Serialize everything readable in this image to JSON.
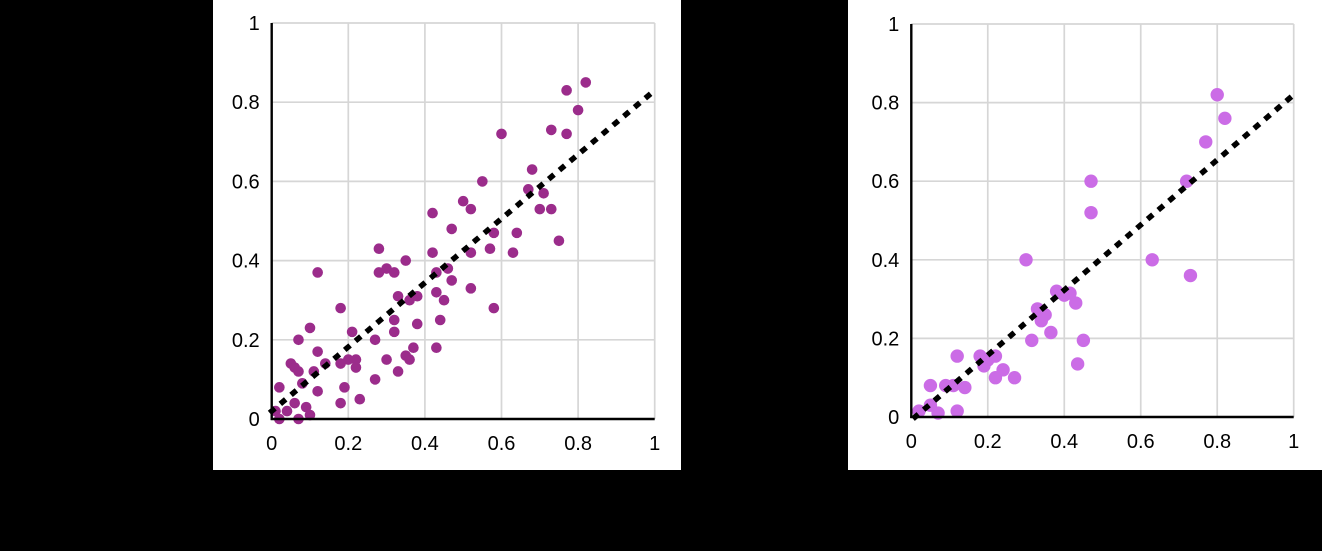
{
  "page": {
    "background_color": "#000000",
    "panel_color": "#ffffff"
  },
  "chart_data": [
    {
      "id": "left-scatter",
      "type": "scatter",
      "title": "",
      "xlabel": "",
      "ylabel": "",
      "xlim": [
        0,
        1
      ],
      "ylim": [
        0,
        1
      ],
      "grid": true,
      "grid_color": "#d6d6d6",
      "axis_color": "#000000",
      "legend": "none",
      "x_tick_values": [
        0,
        0.2,
        0.4,
        0.6,
        0.8,
        1
      ],
      "y_tick_values": [
        0,
        0.2,
        0.4,
        0.6,
        0.8,
        1
      ],
      "x_tick_labels": [
        "0",
        "0.2",
        "0.4",
        "0.6",
        "0.8",
        "1"
      ],
      "y_tick_labels": [
        "0",
        "0.2",
        "0.4",
        "0.6",
        "0.8",
        "1"
      ],
      "series": [
        {
          "name": "scatter-points",
          "marker": "circle",
          "color": "#9B2C8B",
          "marker_radius": 5.3,
          "points": [
            [
              0.01,
              0.02
            ],
            [
              0.02,
              0.0
            ],
            [
              0.02,
              0.08
            ],
            [
              0.04,
              0.02
            ],
            [
              0.05,
              0.14
            ],
            [
              0.06,
              0.04
            ],
            [
              0.06,
              0.13
            ],
            [
              0.07,
              0.0
            ],
            [
              0.07,
              0.12
            ],
            [
              0.07,
              0.2
            ],
            [
              0.08,
              0.09
            ],
            [
              0.09,
              0.03
            ],
            [
              0.1,
              0.01
            ],
            [
              0.1,
              0.23
            ],
            [
              0.11,
              0.12
            ],
            [
              0.12,
              0.07
            ],
            [
              0.12,
              0.17
            ],
            [
              0.12,
              0.37
            ],
            [
              0.14,
              0.14
            ],
            [
              0.18,
              0.04
            ],
            [
              0.18,
              0.14
            ],
            [
              0.18,
              0.28
            ],
            [
              0.19,
              0.08
            ],
            [
              0.2,
              0.15
            ],
            [
              0.21,
              0.22
            ],
            [
              0.22,
              0.13
            ],
            [
              0.22,
              0.15
            ],
            [
              0.23,
              0.05
            ],
            [
              0.27,
              0.1
            ],
            [
              0.27,
              0.2
            ],
            [
              0.28,
              0.37
            ],
            [
              0.28,
              0.43
            ],
            [
              0.3,
              0.15
            ],
            [
              0.3,
              0.38
            ],
            [
              0.32,
              0.22
            ],
            [
              0.32,
              0.25
            ],
            [
              0.32,
              0.37
            ],
            [
              0.33,
              0.12
            ],
            [
              0.33,
              0.31
            ],
            [
              0.35,
              0.16
            ],
            [
              0.35,
              0.4
            ],
            [
              0.36,
              0.15
            ],
            [
              0.36,
              0.3
            ],
            [
              0.37,
              0.18
            ],
            [
              0.38,
              0.24
            ],
            [
              0.38,
              0.31
            ],
            [
              0.42,
              0.42
            ],
            [
              0.42,
              0.52
            ],
            [
              0.43,
              0.18
            ],
            [
              0.43,
              0.32
            ],
            [
              0.43,
              0.37
            ],
            [
              0.44,
              0.25
            ],
            [
              0.45,
              0.3
            ],
            [
              0.46,
              0.38
            ],
            [
              0.47,
              0.35
            ],
            [
              0.47,
              0.48
            ],
            [
              0.5,
              0.55
            ],
            [
              0.52,
              0.33
            ],
            [
              0.52,
              0.42
            ],
            [
              0.52,
              0.53
            ],
            [
              0.55,
              0.6
            ],
            [
              0.57,
              0.43
            ],
            [
              0.58,
              0.28
            ],
            [
              0.58,
              0.47
            ],
            [
              0.6,
              0.72
            ],
            [
              0.63,
              0.42
            ],
            [
              0.64,
              0.47
            ],
            [
              0.67,
              0.58
            ],
            [
              0.68,
              0.63
            ],
            [
              0.7,
              0.53
            ],
            [
              0.71,
              0.57
            ],
            [
              0.73,
              0.53
            ],
            [
              0.73,
              0.73
            ],
            [
              0.75,
              0.45
            ],
            [
              0.77,
              0.72
            ],
            [
              0.77,
              0.83
            ],
            [
              0.8,
              0.78
            ],
            [
              0.82,
              0.85
            ]
          ]
        }
      ],
      "trend_line": {
        "style": "dashed",
        "color": "#000000",
        "from": [
          0.0,
          0.02
        ],
        "to": [
          1.0,
          0.83
        ]
      }
    },
    {
      "id": "right-scatter",
      "type": "scatter",
      "title": "",
      "xlabel": "",
      "ylabel": "",
      "xlim": [
        0,
        1
      ],
      "ylim": [
        0,
        1
      ],
      "grid": true,
      "grid_color": "#d6d6d6",
      "axis_color": "#000000",
      "legend": "none",
      "x_tick_values": [
        0,
        0.2,
        0.4,
        0.6,
        0.8,
        1
      ],
      "y_tick_values": [
        0,
        0.2,
        0.4,
        0.6,
        0.8,
        1
      ],
      "x_tick_labels": [
        "0",
        "0.2",
        "0.4",
        "0.6",
        "0.8",
        "1"
      ],
      "y_tick_labels": [
        "0",
        "0.2",
        "0.4",
        "0.6",
        "0.8",
        "1"
      ],
      "series": [
        {
          "name": "scatter-points",
          "marker": "circle",
          "color": "#CB6CE6",
          "marker_radius": 6.7,
          "points": [
            [
              0.02,
              0.015
            ],
            [
              0.05,
              0.03
            ],
            [
              0.05,
              0.08
            ],
            [
              0.07,
              0.01
            ],
            [
              0.09,
              0.08
            ],
            [
              0.11,
              0.08
            ],
            [
              0.12,
              0.015
            ],
            [
              0.12,
              0.155
            ],
            [
              0.14,
              0.075
            ],
            [
              0.18,
              0.155
            ],
            [
              0.19,
              0.13
            ],
            [
              0.2,
              0.145
            ],
            [
              0.22,
              0.1
            ],
            [
              0.22,
              0.155
            ],
            [
              0.24,
              0.12
            ],
            [
              0.27,
              0.1
            ],
            [
              0.3,
              0.4
            ],
            [
              0.315,
              0.195
            ],
            [
              0.33,
              0.275
            ],
            [
              0.34,
              0.245
            ],
            [
              0.35,
              0.26
            ],
            [
              0.365,
              0.215
            ],
            [
              0.38,
              0.32
            ],
            [
              0.4,
              0.31
            ],
            [
              0.415,
              0.315
            ],
            [
              0.43,
              0.29
            ],
            [
              0.435,
              0.135
            ],
            [
              0.45,
              0.195
            ],
            [
              0.47,
              0.52
            ],
            [
              0.47,
              0.6
            ],
            [
              0.63,
              0.4
            ],
            [
              0.72,
              0.6
            ],
            [
              0.73,
              0.36
            ],
            [
              0.77,
              0.7
            ],
            [
              0.8,
              0.82
            ],
            [
              0.82,
              0.76
            ]
          ]
        }
      ],
      "trend_line": {
        "style": "dashed",
        "color": "#000000",
        "from": [
          0.01,
          0.0
        ],
        "to": [
          1.0,
          0.82
        ]
      }
    }
  ]
}
